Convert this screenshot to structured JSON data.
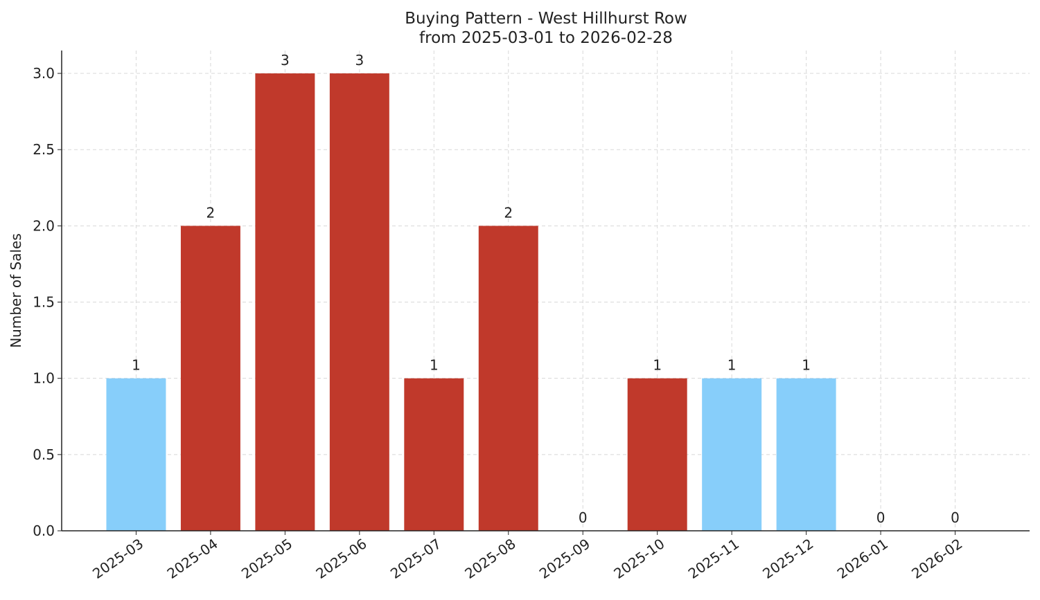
{
  "chart_data": {
    "type": "bar",
    "title": "Buying Pattern - West Hillhurst Row",
    "subtitle": "from 2025-03-01 to 2026-02-28",
    "y_label": "Number of Sales",
    "categories": [
      "2025-03",
      "2025-04",
      "2025-05",
      "2025-06",
      "2025-07",
      "2025-08",
      "2025-09",
      "2025-10",
      "2025-11",
      "2025-12",
      "2026-01",
      "2026-02"
    ],
    "values": [
      1,
      2,
      3,
      3,
      1,
      2,
      0,
      1,
      1,
      1,
      0,
      0
    ],
    "colors": [
      "#87cefa",
      "#c0392b",
      "#c0392b",
      "#c0392b",
      "#c0392b",
      "#c0392b",
      null,
      "#c0392b",
      "#87cefa",
      "#87cefa",
      null,
      null
    ],
    "ylim": [
      0,
      3.15
    ],
    "yticks": [
      {
        "value": 0,
        "label": "0.0"
      },
      {
        "value": 0.5,
        "label": "0.5"
      },
      {
        "value": 1,
        "label": "1.0"
      },
      {
        "value": 1.5,
        "label": "1.5"
      },
      {
        "value": 2,
        "label": "2.0"
      },
      {
        "value": 2.5,
        "label": "2.5"
      },
      {
        "value": 3,
        "label": "3.0"
      }
    ],
    "grid": true
  }
}
